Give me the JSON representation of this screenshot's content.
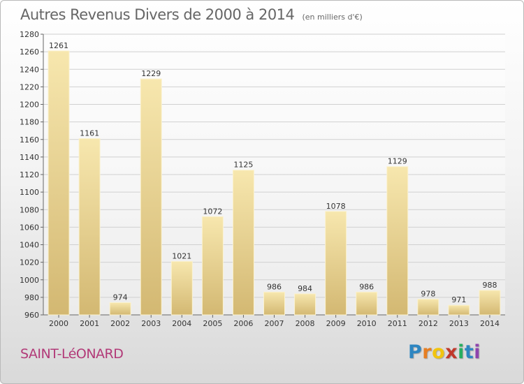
{
  "header": {
    "title": "Autres Revenus Divers de 2000 à 2014",
    "subtitle": "(en milliers d'€)"
  },
  "footer": {
    "place": "SAINT-LéONARD",
    "logo_letters": [
      "P",
      "r",
      "o",
      "x",
      "i",
      "t",
      "i"
    ]
  },
  "chart_data": {
    "type": "bar",
    "title": "Autres Revenus Divers de 2000 à 2014",
    "subtitle": "(en milliers d'€)",
    "categories": [
      "2000",
      "2001",
      "2002",
      "2003",
      "2004",
      "2005",
      "2006",
      "2007",
      "2008",
      "2009",
      "2010",
      "2011",
      "2012",
      "2013",
      "2014"
    ],
    "values": [
      1261,
      1161,
      974,
      1229,
      1021,
      1072,
      1125,
      986,
      984,
      1078,
      986,
      1129,
      978,
      971,
      988
    ],
    "ylim": [
      960,
      1280
    ],
    "ytick_step": 20,
    "grid": true,
    "colors": {
      "bar_light": "#f6e3a4",
      "bar_dark": "#d8c07a",
      "grid": "#d0d0d0",
      "text": "#333333"
    }
  }
}
